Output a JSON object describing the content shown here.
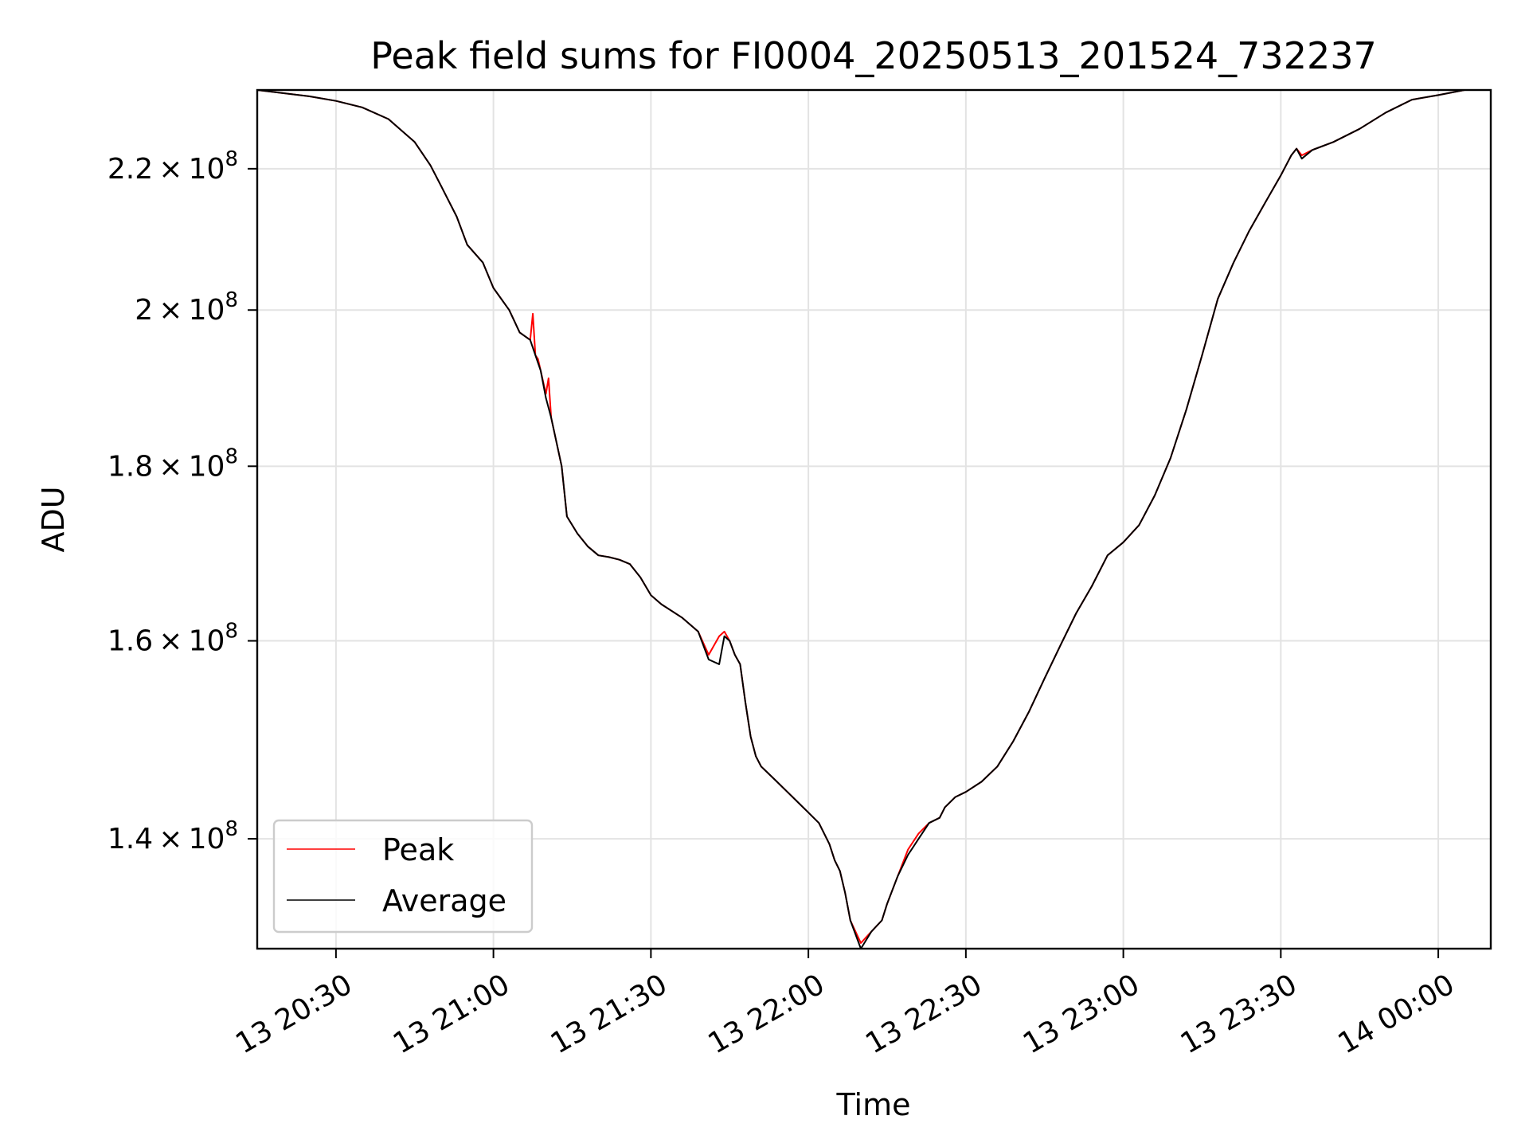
{
  "chart_data": {
    "type": "line",
    "title": "Peak field sums for FI0004_20250513_201524_732237",
    "xlabel": "Time",
    "ylabel": "ADU",
    "y_scale": "log",
    "grid": true,
    "legend_position": "lower-left",
    "xlim": [
      "2025-05-13 20:15",
      "2025-05-14 00:10"
    ],
    "ylim": [
      130000000,
      232000000
    ],
    "x_ticks": [
      {
        "value": "2025-05-13 20:30",
        "label": "13 20:30"
      },
      {
        "value": "2025-05-13 21:00",
        "label": "13 21:00"
      },
      {
        "value": "2025-05-13 21:30",
        "label": "13 21:30"
      },
      {
        "value": "2025-05-13 22:00",
        "label": "13 22:00"
      },
      {
        "value": "2025-05-13 22:30",
        "label": "13 22:30"
      },
      {
        "value": "2025-05-13 23:00",
        "label": "13 23:00"
      },
      {
        "value": "2025-05-13 23:30",
        "label": "13 23:30"
      },
      {
        "value": "2025-05-14 00:00",
        "label": "14 00:00"
      }
    ],
    "y_ticks": [
      {
        "value": 140000000,
        "mantissa": "1.4"
      },
      {
        "value": 160000000,
        "mantissa": "1.6"
      },
      {
        "value": 180000000,
        "mantissa": "1.8"
      },
      {
        "value": 200000000,
        "mantissa": "2"
      },
      {
        "value": 220000000,
        "mantissa": "2.2"
      }
    ],
    "tick_base": "10",
    "tick_exponent": "8",
    "series": [
      {
        "name": "Peak",
        "color": "#ff0000",
        "x": [
          "2025-05-13 20:15",
          "2025-05-13 20:25",
          "2025-05-13 20:30",
          "2025-05-13 20:35",
          "2025-05-13 20:40",
          "2025-05-13 20:45",
          "2025-05-13 20:48",
          "2025-05-13 20:50",
          "2025-05-13 20:53",
          "2025-05-13 20:55",
          "2025-05-13 20:58",
          "2025-05-13 21:00",
          "2025-05-13 21:03",
          "2025-05-13 21:05",
          "2025-05-13 21:07",
          "2025-05-13 21:07:30",
          "2025-05-13 21:08",
          "2025-05-13 21:08:30",
          "2025-05-13 21:09",
          "2025-05-13 21:10",
          "2025-05-13 21:10:30",
          "2025-05-13 21:11",
          "2025-05-13 21:13",
          "2025-05-13 21:14",
          "2025-05-13 21:16",
          "2025-05-13 21:18",
          "2025-05-13 21:20",
          "2025-05-13 21:22",
          "2025-05-13 21:24",
          "2025-05-13 21:26",
          "2025-05-13 21:28",
          "2025-05-13 21:30",
          "2025-05-13 21:32",
          "2025-05-13 21:36",
          "2025-05-13 21:39",
          "2025-05-13 21:41",
          "2025-05-13 21:43",
          "2025-05-13 21:44",
          "2025-05-13 21:45",
          "2025-05-13 21:46",
          "2025-05-13 21:47",
          "2025-05-13 21:48",
          "2025-05-13 21:49",
          "2025-05-13 21:50",
          "2025-05-13 21:51",
          "2025-05-13 21:52",
          "2025-05-13 21:54",
          "2025-05-13 21:56",
          "2025-05-13 21:58",
          "2025-05-13 22:00",
          "2025-05-13 22:02",
          "2025-05-13 22:04",
          "2025-05-13 22:05",
          "2025-05-13 22:06",
          "2025-05-13 22:07",
          "2025-05-13 22:08",
          "2025-05-13 22:10",
          "2025-05-13 22:12",
          "2025-05-13 22:14",
          "2025-05-13 22:15",
          "2025-05-13 22:17",
          "2025-05-13 22:19",
          "2025-05-13 22:21",
          "2025-05-13 22:23",
          "2025-05-13 22:25",
          "2025-05-13 22:26",
          "2025-05-13 22:28",
          "2025-05-13 22:30",
          "2025-05-13 22:33",
          "2025-05-13 22:36",
          "2025-05-13 22:39",
          "2025-05-13 22:42",
          "2025-05-13 22:45",
          "2025-05-13 22:48",
          "2025-05-13 22:51",
          "2025-05-13 22:54",
          "2025-05-13 22:57",
          "2025-05-13 23:00",
          "2025-05-13 23:03",
          "2025-05-13 23:06",
          "2025-05-13 23:09",
          "2025-05-13 23:12",
          "2025-05-13 23:15",
          "2025-05-13 23:18",
          "2025-05-13 23:21",
          "2025-05-13 23:24",
          "2025-05-13 23:27",
          "2025-05-13 23:30",
          "2025-05-13 23:32",
          "2025-05-13 23:33",
          "2025-05-13 23:34",
          "2025-05-13 23:36",
          "2025-05-13 23:40",
          "2025-05-13 23:45",
          "2025-05-13 23:50",
          "2025-05-13 23:55",
          "2025-05-14 00:00",
          "2025-05-14 00:05",
          "2025-05-14 00:10"
        ],
        "y": [
          232000000,
          231000000,
          230300000,
          229300000,
          227500000,
          224000000,
          220500000,
          217500000,
          213000000,
          209000000,
          206500000,
          203000000,
          200000000,
          197000000,
          196000000,
          199500000,
          194000000,
          193500000,
          192000000,
          189000000,
          191000000,
          186000000,
          180000000,
          174000000,
          172000000,
          170500000,
          169500000,
          169300000,
          169000000,
          168500000,
          167000000,
          165000000,
          164000000,
          162500000,
          161000000,
          158500000,
          160500000,
          161000000,
          160000000,
          158500000,
          157500000,
          153500000,
          150000000,
          148000000,
          147000000,
          146500000,
          145500000,
          144500000,
          143500000,
          142500000,
          141500000,
          139500000,
          138000000,
          137000000,
          135000000,
          132500000,
          130500000,
          131500000,
          132500000,
          134000000,
          136500000,
          139000000,
          140500000,
          141500000,
          142000000,
          143000000,
          144000000,
          144500000,
          145500000,
          147000000,
          149500000,
          152500000,
          156000000,
          159500000,
          163000000,
          166000000,
          169500000,
          171000000,
          173000000,
          176500000,
          181000000,
          187000000,
          194000000,
          201500000,
          206500000,
          211000000,
          215000000,
          219000000,
          222000000,
          223000000,
          222000000,
          222800000,
          224000000,
          226000000,
          228500000,
          230500000,
          231200000,
          232000000,
          232000000
        ]
      },
      {
        "name": "Average",
        "color": "#000000",
        "x": [
          "2025-05-13 20:15",
          "2025-05-13 20:25",
          "2025-05-13 20:30",
          "2025-05-13 20:35",
          "2025-05-13 20:40",
          "2025-05-13 20:45",
          "2025-05-13 20:48",
          "2025-05-13 20:50",
          "2025-05-13 20:53",
          "2025-05-13 20:55",
          "2025-05-13 20:58",
          "2025-05-13 21:00",
          "2025-05-13 21:03",
          "2025-05-13 21:05",
          "2025-05-13 21:07",
          "2025-05-13 21:08",
          "2025-05-13 21:09",
          "2025-05-13 21:10",
          "2025-05-13 21:11",
          "2025-05-13 21:13",
          "2025-05-13 21:14",
          "2025-05-13 21:16",
          "2025-05-13 21:18",
          "2025-05-13 21:20",
          "2025-05-13 21:22",
          "2025-05-13 21:24",
          "2025-05-13 21:26",
          "2025-05-13 21:28",
          "2025-05-13 21:30",
          "2025-05-13 21:32",
          "2025-05-13 21:36",
          "2025-05-13 21:39",
          "2025-05-13 21:41",
          "2025-05-13 21:43",
          "2025-05-13 21:44",
          "2025-05-13 21:45",
          "2025-05-13 21:46",
          "2025-05-13 21:47",
          "2025-05-13 21:48",
          "2025-05-13 21:49",
          "2025-05-13 21:50",
          "2025-05-13 21:51",
          "2025-05-13 21:52",
          "2025-05-13 21:54",
          "2025-05-13 21:56",
          "2025-05-13 21:58",
          "2025-05-13 22:00",
          "2025-05-13 22:02",
          "2025-05-13 22:04",
          "2025-05-13 22:05",
          "2025-05-13 22:06",
          "2025-05-13 22:07",
          "2025-05-13 22:08",
          "2025-05-13 22:10",
          "2025-05-13 22:12",
          "2025-05-13 22:14",
          "2025-05-13 22:15",
          "2025-05-13 22:17",
          "2025-05-13 22:19",
          "2025-05-13 22:21",
          "2025-05-13 22:23",
          "2025-05-13 22:25",
          "2025-05-13 22:26",
          "2025-05-13 22:28",
          "2025-05-13 22:30",
          "2025-05-13 22:33",
          "2025-05-13 22:36",
          "2025-05-13 22:39",
          "2025-05-13 22:42",
          "2025-05-13 22:45",
          "2025-05-13 22:48",
          "2025-05-13 22:51",
          "2025-05-13 22:54",
          "2025-05-13 22:57",
          "2025-05-13 23:00",
          "2025-05-13 23:03",
          "2025-05-13 23:06",
          "2025-05-13 23:09",
          "2025-05-13 23:12",
          "2025-05-13 23:15",
          "2025-05-13 23:18",
          "2025-05-13 23:21",
          "2025-05-13 23:24",
          "2025-05-13 23:27",
          "2025-05-13 23:30",
          "2025-05-13 23:32",
          "2025-05-13 23:33",
          "2025-05-13 23:34",
          "2025-05-13 23:36",
          "2025-05-13 23:40",
          "2025-05-13 23:45",
          "2025-05-13 23:50",
          "2025-05-13 23:55",
          "2025-05-14 00:00",
          "2025-05-14 00:05",
          "2025-05-14 00:10"
        ],
        "y": [
          232000000,
          231000000,
          230300000,
          229300000,
          227500000,
          224000000,
          220500000,
          217500000,
          213000000,
          209000000,
          206500000,
          203000000,
          200000000,
          197000000,
          196000000,
          194000000,
          192000000,
          188500000,
          186000000,
          180000000,
          174000000,
          172000000,
          170500000,
          169500000,
          169300000,
          169000000,
          168500000,
          167000000,
          165000000,
          164000000,
          162500000,
          161000000,
          158000000,
          157500000,
          160500000,
          160000000,
          158500000,
          157500000,
          153500000,
          150000000,
          148000000,
          147000000,
          146500000,
          145500000,
          144500000,
          143500000,
          142500000,
          141500000,
          139500000,
          138000000,
          137000000,
          135000000,
          132500000,
          130000000,
          131500000,
          132500000,
          134000000,
          136500000,
          138500000,
          140000000,
          141500000,
          142000000,
          143000000,
          144000000,
          144500000,
          145500000,
          147000000,
          149500000,
          152500000,
          156000000,
          159500000,
          163000000,
          166000000,
          169500000,
          171000000,
          173000000,
          176500000,
          181000000,
          187000000,
          194000000,
          201500000,
          206500000,
          211000000,
          215000000,
          219000000,
          222000000,
          223000000,
          221500000,
          222800000,
          224000000,
          226000000,
          228500000,
          230500000,
          231200000,
          232000000,
          232000000
        ]
      }
    ]
  }
}
